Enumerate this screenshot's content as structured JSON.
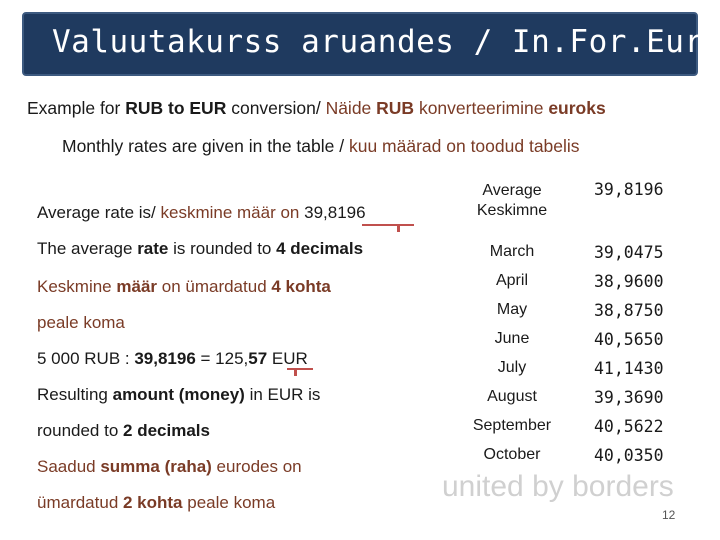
{
  "title": "Valuutakurss aruandes / In.For.Eur",
  "intro": {
    "p1": "Example for ",
    "p2": "RUB to EUR",
    "p3": " conversion/ ",
    "p4": "Näide ",
    "p5": "RUB",
    "p6": " konverteerimine ",
    "p7": "euroks"
  },
  "monthly": {
    "p1": "Monthly rates are given in the table / ",
    "p2": "kuu määrad on toodud tabelis"
  },
  "left": {
    "avg_en": "Average rate is/ ",
    "avg_et": "keskmine määr on ",
    "avg_value": "39,8196",
    "rounded_p1": "The average ",
    "rounded_p2": "rate",
    "rounded_p3": " is rounded to ",
    "rounded_p4": "4 decimals",
    "keskmine_p1": "Keskmine ",
    "keskmine_p2": "määr",
    "keskmine_p3": " on ümardatud ",
    "keskmine_p4": "4 kohta",
    "peale_koma": "peale koma",
    "calc_p1": "5 000 RUB : ",
    "calc_p2": "39,8196",
    "calc_p3": " = 125,",
    "calc_p4": "57",
    "calc_p5": " EUR",
    "result_p1": "Resulting ",
    "result_p2": "amount (money)",
    "result_p3": " in EUR is",
    "rounded2_p1": "rounded to ",
    "rounded2_p2": "2 decimals",
    "saadud_p1": "Saadud ",
    "saadud_p2": "summa (raha)",
    "saadud_p3": " eurodes on",
    "umard_p1": "ümardatud ",
    "umard_p2": "2 kohta",
    "umard_p3": " peale koma"
  },
  "table": {
    "head_en": "Average",
    "head_et": "Keskimne",
    "head_value": "39,8196",
    "rows": [
      {
        "month": "March",
        "value": "39,0475"
      },
      {
        "month": "April",
        "value": "38,9600"
      },
      {
        "month": "May",
        "value": "38,8750"
      },
      {
        "month": "June",
        "value": "40,5650"
      },
      {
        "month": "July",
        "value": "41,1430"
      },
      {
        "month": "August",
        "value": "39,3690"
      },
      {
        "month": "September",
        "value": "40,5622"
      },
      {
        "month": "October",
        "value": "40,0350"
      }
    ]
  },
  "watermark": "united by borders",
  "page_number": "12",
  "colors": {
    "title_bg": "#1f3a5f",
    "accent_brown": "#7a3b26",
    "marker_red": "#c0504d"
  }
}
